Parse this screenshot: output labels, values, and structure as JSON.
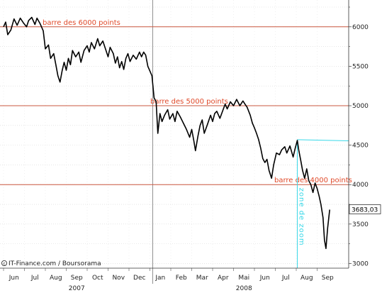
{
  "chart_data": {
    "type": "line",
    "credit": "IT-Finance.com / Boursorama",
    "y_ticks": [
      3000,
      3500,
      4000,
      4500,
      5000,
      5500,
      6000
    ],
    "ylim": [
      2950,
      6250
    ],
    "x_months": [
      "Jun",
      "Jul",
      "Aug",
      "Sep",
      "Oct",
      "Nov",
      "Dec",
      "Jan",
      "Feb",
      "Mar",
      "Apr",
      "Mai",
      "Jun",
      "Jul",
      "Aug",
      "Sep"
    ],
    "x_years": [
      {
        "label": "2007",
        "month_index": 3.5
      },
      {
        "label": "2008",
        "month_index": 11.5
      }
    ],
    "x_start": "2007-06",
    "xlim_months": [
      0,
      16.6
    ],
    "year_separator_month_index": 7,
    "reference_lines": [
      {
        "value": 6000,
        "label": "barre des 6000 points"
      },
      {
        "value": 5000,
        "label": "barre des 5000 points"
      },
      {
        "value": 4000,
        "label": "barre des 4000 points"
      }
    ],
    "zoom_zone": {
      "label": "zone de zoom",
      "start_month_index": 14.05,
      "start_value": 4570,
      "end_value": 4555
    },
    "last_value_label": "3683,03",
    "last_value": 3683,
    "series": [
      {
        "values": [
          [
            0.0,
            6000
          ],
          [
            0.1,
            6060
          ],
          [
            0.2,
            5900
          ],
          [
            0.35,
            5960
          ],
          [
            0.5,
            6100
          ],
          [
            0.65,
            6020
          ],
          [
            0.8,
            6110
          ],
          [
            0.95,
            6050
          ],
          [
            1.1,
            6000
          ],
          [
            1.2,
            6080
          ],
          [
            1.35,
            6120
          ],
          [
            1.5,
            6030
          ],
          [
            1.6,
            6110
          ],
          [
            1.75,
            6040
          ],
          [
            1.9,
            5950
          ],
          [
            2.0,
            5720
          ],
          [
            2.15,
            5770
          ],
          [
            2.25,
            5600
          ],
          [
            2.4,
            5660
          ],
          [
            2.5,
            5520
          ],
          [
            2.6,
            5380
          ],
          [
            2.7,
            5300
          ],
          [
            2.8,
            5440
          ],
          [
            2.9,
            5550
          ],
          [
            3.0,
            5450
          ],
          [
            3.1,
            5600
          ],
          [
            3.2,
            5520
          ],
          [
            3.3,
            5700
          ],
          [
            3.45,
            5620
          ],
          [
            3.6,
            5680
          ],
          [
            3.7,
            5550
          ],
          [
            3.85,
            5700
          ],
          [
            4.0,
            5760
          ],
          [
            4.1,
            5680
          ],
          [
            4.2,
            5800
          ],
          [
            4.35,
            5720
          ],
          [
            4.5,
            5850
          ],
          [
            4.6,
            5760
          ],
          [
            4.75,
            5820
          ],
          [
            4.9,
            5700
          ],
          [
            5.0,
            5620
          ],
          [
            5.1,
            5740
          ],
          [
            5.25,
            5660
          ],
          [
            5.35,
            5540
          ],
          [
            5.45,
            5620
          ],
          [
            5.55,
            5480
          ],
          [
            5.65,
            5560
          ],
          [
            5.75,
            5460
          ],
          [
            5.85,
            5600
          ],
          [
            5.95,
            5660
          ],
          [
            6.05,
            5560
          ],
          [
            6.2,
            5640
          ],
          [
            6.35,
            5590
          ],
          [
            6.5,
            5680
          ],
          [
            6.6,
            5620
          ],
          [
            6.7,
            5680
          ],
          [
            6.8,
            5640
          ],
          [
            6.9,
            5500
          ],
          [
            7.0,
            5440
          ],
          [
            7.1,
            5380
          ],
          [
            7.2,
            5100
          ],
          [
            7.3,
            5050
          ],
          [
            7.38,
            4650
          ],
          [
            7.48,
            4900
          ],
          [
            7.58,
            4800
          ],
          [
            7.7,
            4880
          ],
          [
            7.85,
            4950
          ],
          [
            7.95,
            4830
          ],
          [
            8.1,
            4900
          ],
          [
            8.2,
            4800
          ],
          [
            8.3,
            4930
          ],
          [
            8.45,
            4860
          ],
          [
            8.6,
            4780
          ],
          [
            8.75,
            4700
          ],
          [
            8.9,
            4600
          ],
          [
            9.0,
            4700
          ],
          [
            9.1,
            4560
          ],
          [
            9.18,
            4430
          ],
          [
            9.3,
            4620
          ],
          [
            9.4,
            4750
          ],
          [
            9.5,
            4820
          ],
          [
            9.6,
            4650
          ],
          [
            9.75,
            4760
          ],
          [
            9.9,
            4880
          ],
          [
            10.0,
            4800
          ],
          [
            10.1,
            4900
          ],
          [
            10.2,
            4930
          ],
          [
            10.35,
            4840
          ],
          [
            10.5,
            4950
          ],
          [
            10.6,
            5020
          ],
          [
            10.7,
            4960
          ],
          [
            10.85,
            5050
          ],
          [
            11.0,
            5000
          ],
          [
            11.15,
            5080
          ],
          [
            11.3,
            5000
          ],
          [
            11.45,
            5060
          ],
          [
            11.55,
            5020
          ],
          [
            11.65,
            4980
          ],
          [
            11.8,
            4880
          ],
          [
            11.9,
            4780
          ],
          [
            12.0,
            4720
          ],
          [
            12.1,
            4650
          ],
          [
            12.2,
            4570
          ],
          [
            12.3,
            4460
          ],
          [
            12.4,
            4330
          ],
          [
            12.5,
            4280
          ],
          [
            12.6,
            4320
          ],
          [
            12.7,
            4180
          ],
          [
            12.82,
            4080
          ],
          [
            12.92,
            4250
          ],
          [
            13.05,
            4400
          ],
          [
            13.2,
            4380
          ],
          [
            13.3,
            4440
          ],
          [
            13.45,
            4480
          ],
          [
            13.55,
            4400
          ],
          [
            13.7,
            4490
          ],
          [
            13.85,
            4350
          ],
          [
            13.95,
            4460
          ],
          [
            14.05,
            4560
          ],
          [
            14.12,
            4440
          ],
          [
            14.22,
            4300
          ],
          [
            14.3,
            4180
          ],
          [
            14.4,
            4080
          ],
          [
            14.5,
            4200
          ],
          [
            14.6,
            4050
          ],
          [
            14.7,
            4000
          ],
          [
            14.8,
            3900
          ],
          [
            14.9,
            4020
          ],
          [
            15.0,
            3950
          ],
          [
            15.1,
            3850
          ],
          [
            15.18,
            3750
          ],
          [
            15.28,
            3580
          ],
          [
            15.35,
            3300
          ],
          [
            15.42,
            3190
          ],
          [
            15.5,
            3450
          ],
          [
            15.6,
            3683
          ]
        ]
      }
    ]
  }
}
